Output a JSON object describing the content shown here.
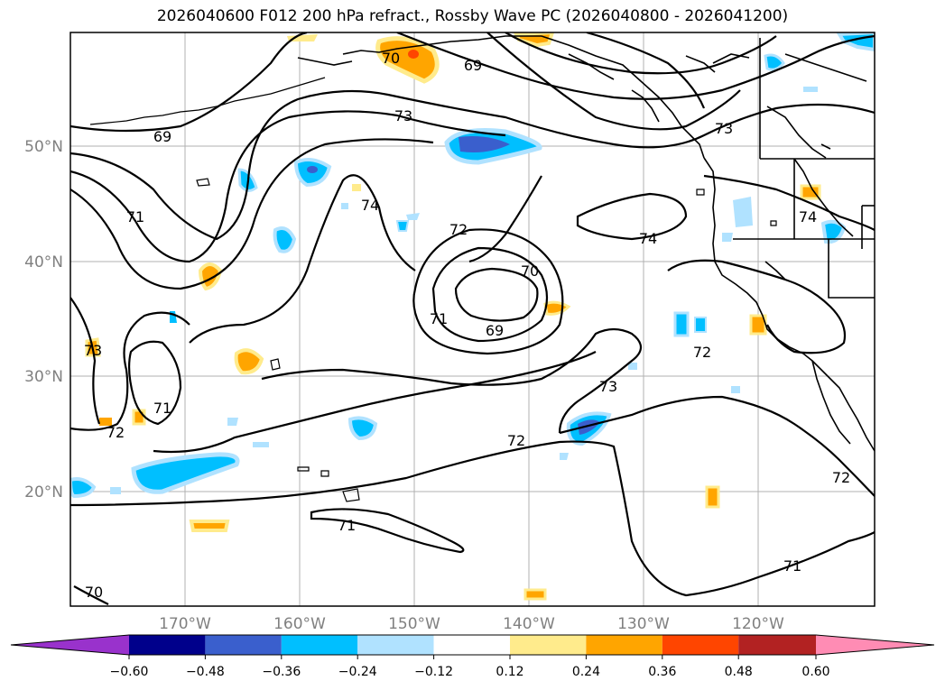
{
  "title": "2026040600 F012 200 hPa refract., Rossby Wave PC (2026040800 - 2026041200)",
  "map": {
    "lat_labels": [
      "50°N",
      "40°N",
      "30°N",
      "20°N"
    ],
    "lon_labels": [
      "170°W",
      "160°W",
      "150°W",
      "140°W",
      "130°W",
      "120°W"
    ],
    "contour_labels": [
      "69",
      "70",
      "73",
      "69",
      "71",
      "74",
      "72",
      "70",
      "71",
      "69",
      "73",
      "74",
      "73",
      "71",
      "72",
      "73",
      "72",
      "72",
      "71",
      "71",
      "70",
      "74",
      "72"
    ]
  },
  "colorbar": {
    "labels": [
      "−0.60",
      "−0.48",
      "−0.36",
      "−0.24",
      "−0.12",
      "0.12",
      "0.24",
      "0.36",
      "0.48",
      "0.60"
    ],
    "colors": [
      "#9932cc",
      "#00008b",
      "#3a5fcd",
      "#00bfff",
      "#b0e2ff",
      "#ffffff",
      "#ffeb8c",
      "#ffa500",
      "#ff4500",
      "#b22222",
      "#ff8cb4"
    ]
  }
}
